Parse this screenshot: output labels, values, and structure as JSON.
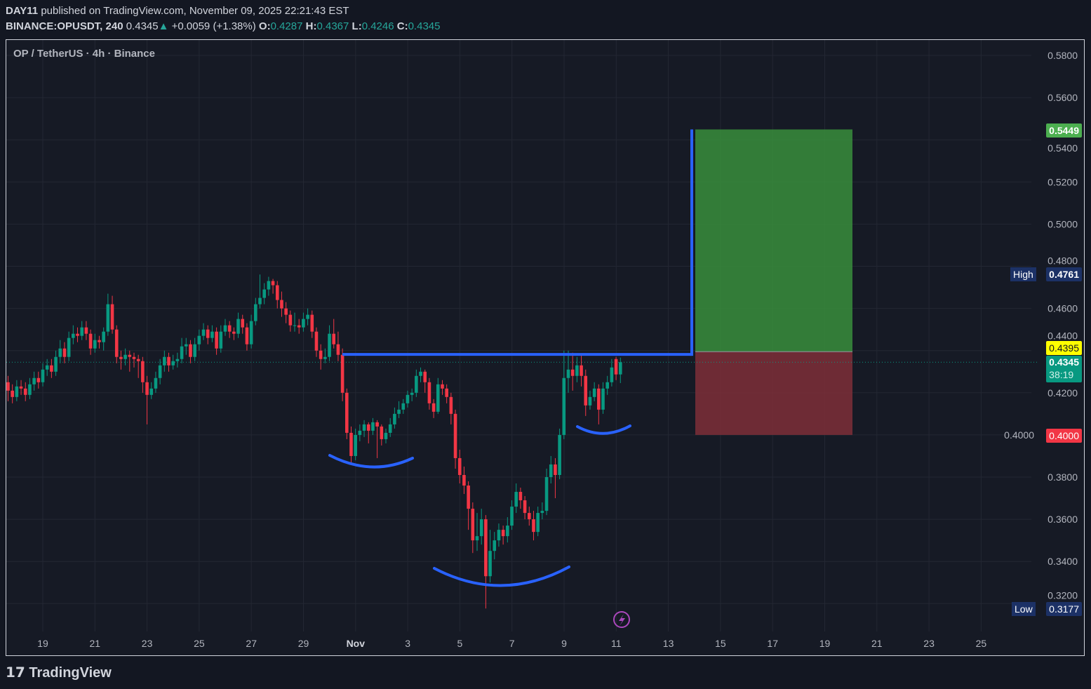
{
  "header": {
    "author": "DAY11",
    "published": "published on TradingView.com, November 09, 2025 22:21:43 EST",
    "symbol": "BINANCE:OPUSDT, 240",
    "last": "0.4345",
    "change": "+0.0059 (+1.38%)",
    "o_label": "O:",
    "o": "0.4287",
    "h_label": "H:",
    "h": "0.4367",
    "l_label": "L:",
    "l": "0.4246",
    "c_label": "C:",
    "c": "0.4345"
  },
  "legend": "OP / TetherUS · 4h · Binance",
  "labels": {
    "target": "0.5449",
    "high_tag": "High",
    "high": "0.4761",
    "entry": "0.4395",
    "current": "0.4345",
    "countdown": "38:19",
    "stop": "0.4000",
    "low_tag": "Low",
    "low": "0.3177"
  },
  "branding": "TradingView",
  "colors": {
    "up": "#089981",
    "down": "#f23645",
    "drawing": "#2962ff",
    "profit": "#388e3c",
    "loss": "#7e2f38",
    "entry": "#ffff00"
  },
  "chart_data": {
    "type": "candlestick",
    "title": "OP / TetherUS · 4h · Binance",
    "ylim": [
      0.31,
      0.586
    ],
    "y_ticks": [
      "0.5800",
      "0.5600",
      "0.5400",
      "0.5200",
      "0.5000",
      "0.4800",
      "0.4600",
      "0.4400",
      "0.4200",
      "0.4000",
      "0.3800",
      "0.3600",
      "0.3400",
      "0.3200"
    ],
    "x_ticks": [
      "19",
      "21",
      "23",
      "25",
      "27",
      "29",
      "Nov",
      "3",
      "5",
      "7",
      "9",
      "11",
      "13",
      "15",
      "17",
      "19",
      "21",
      "23",
      "25"
    ],
    "grid": true,
    "candles_ohlc": [
      [
        0.425,
        0.428,
        0.416,
        0.421
      ],
      [
        0.421,
        0.424,
        0.415,
        0.418
      ],
      [
        0.418,
        0.426,
        0.416,
        0.423
      ],
      [
        0.423,
        0.426,
        0.419,
        0.422
      ],
      [
        0.422,
        0.425,
        0.416,
        0.419
      ],
      [
        0.419,
        0.427,
        0.417,
        0.424
      ],
      [
        0.424,
        0.43,
        0.421,
        0.427
      ],
      [
        0.427,
        0.43,
        0.422,
        0.425
      ],
      [
        0.425,
        0.434,
        0.423,
        0.431
      ],
      [
        0.431,
        0.436,
        0.428,
        0.433
      ],
      [
        0.433,
        0.436,
        0.427,
        0.43
      ],
      [
        0.43,
        0.44,
        0.428,
        0.437
      ],
      [
        0.437,
        0.445,
        0.434,
        0.441
      ],
      [
        0.441,
        0.444,
        0.434,
        0.437
      ],
      [
        0.437,
        0.449,
        0.435,
        0.446
      ],
      [
        0.446,
        0.452,
        0.443,
        0.448
      ],
      [
        0.448,
        0.451,
        0.444,
        0.447
      ],
      [
        0.447,
        0.454,
        0.445,
        0.451
      ],
      [
        0.451,
        0.454,
        0.445,
        0.448
      ],
      [
        0.448,
        0.45,
        0.438,
        0.441
      ],
      [
        0.441,
        0.448,
        0.439,
        0.445
      ],
      [
        0.445,
        0.447,
        0.441,
        0.444
      ],
      [
        0.444,
        0.451,
        0.44,
        0.449
      ],
      [
        0.449,
        0.467,
        0.447,
        0.462
      ],
      [
        0.462,
        0.466,
        0.448,
        0.45
      ],
      [
        0.45,
        0.452,
        0.434,
        0.437
      ],
      [
        0.437,
        0.44,
        0.431,
        0.436
      ],
      [
        0.436,
        0.441,
        0.433,
        0.438
      ],
      [
        0.438,
        0.44,
        0.43,
        0.437
      ],
      [
        0.437,
        0.439,
        0.432,
        0.436
      ],
      [
        0.436,
        0.438,
        0.427,
        0.435
      ],
      [
        0.435,
        0.437,
        0.42,
        0.425
      ],
      [
        0.425,
        0.428,
        0.405,
        0.419
      ],
      [
        0.419,
        0.425,
        0.417,
        0.422
      ],
      [
        0.422,
        0.43,
        0.42,
        0.427
      ],
      [
        0.427,
        0.436,
        0.424,
        0.433
      ],
      [
        0.433,
        0.44,
        0.43,
        0.437
      ],
      [
        0.437,
        0.439,
        0.43,
        0.433
      ],
      [
        0.433,
        0.438,
        0.431,
        0.435
      ],
      [
        0.435,
        0.439,
        0.432,
        0.436
      ],
      [
        0.436,
        0.446,
        0.434,
        0.442
      ],
      [
        0.442,
        0.446,
        0.438,
        0.443
      ],
      [
        0.443,
        0.445,
        0.434,
        0.437
      ],
      [
        0.437,
        0.446,
        0.435,
        0.443
      ],
      [
        0.443,
        0.45,
        0.44,
        0.447
      ],
      [
        0.447,
        0.453,
        0.445,
        0.45
      ],
      [
        0.45,
        0.452,
        0.443,
        0.446
      ],
      [
        0.446,
        0.452,
        0.444,
        0.449
      ],
      [
        0.449,
        0.451,
        0.438,
        0.441
      ],
      [
        0.441,
        0.452,
        0.439,
        0.449
      ],
      [
        0.449,
        0.455,
        0.447,
        0.452
      ],
      [
        0.452,
        0.454,
        0.446,
        0.449
      ],
      [
        0.449,
        0.451,
        0.445,
        0.448
      ],
      [
        0.448,
        0.458,
        0.446,
        0.455
      ],
      [
        0.455,
        0.457,
        0.448,
        0.451
      ],
      [
        0.451,
        0.453,
        0.44,
        0.443
      ],
      [
        0.443,
        0.457,
        0.441,
        0.454
      ],
      [
        0.454,
        0.465,
        0.452,
        0.462
      ],
      [
        0.462,
        0.4761,
        0.46,
        0.465
      ],
      [
        0.465,
        0.472,
        0.462,
        0.469
      ],
      [
        0.469,
        0.475,
        0.466,
        0.473
      ],
      [
        0.473,
        0.474,
        0.467,
        0.471
      ],
      [
        0.471,
        0.473,
        0.46,
        0.464
      ],
      [
        0.464,
        0.468,
        0.456,
        0.46
      ],
      [
        0.46,
        0.463,
        0.453,
        0.457
      ],
      [
        0.457,
        0.459,
        0.449,
        0.452
      ],
      [
        0.452,
        0.458,
        0.449,
        0.452
      ],
      [
        0.452,
        0.455,
        0.448,
        0.451
      ],
      [
        0.451,
        0.458,
        0.449,
        0.455
      ],
      [
        0.455,
        0.46,
        0.452,
        0.457
      ],
      [
        0.457,
        0.459,
        0.446,
        0.449
      ],
      [
        0.449,
        0.451,
        0.437,
        0.44
      ],
      [
        0.44,
        0.443,
        0.431,
        0.436
      ],
      [
        0.436,
        0.441,
        0.434,
        0.437
      ],
      [
        0.437,
        0.452,
        0.435,
        0.448
      ],
      [
        0.448,
        0.455,
        0.441,
        0.443
      ],
      [
        0.443,
        0.449,
        0.435,
        0.438
      ],
      [
        0.438,
        0.441,
        0.416,
        0.42
      ],
      [
        0.42,
        0.422,
        0.398,
        0.401
      ],
      [
        0.401,
        0.404,
        0.387,
        0.39
      ],
      [
        0.39,
        0.403,
        0.388,
        0.4
      ],
      [
        0.4,
        0.405,
        0.397,
        0.402
      ],
      [
        0.402,
        0.407,
        0.399,
        0.405
      ],
      [
        0.405,
        0.406,
        0.396,
        0.402
      ],
      [
        0.402,
        0.408,
        0.4,
        0.406
      ],
      [
        0.406,
        0.407,
        0.389,
        0.404
      ],
      [
        0.404,
        0.405,
        0.395,
        0.398
      ],
      [
        0.398,
        0.403,
        0.396,
        0.401
      ],
      [
        0.401,
        0.408,
        0.399,
        0.405
      ],
      [
        0.405,
        0.413,
        0.403,
        0.41
      ],
      [
        0.41,
        0.416,
        0.408,
        0.412
      ],
      [
        0.412,
        0.417,
        0.41,
        0.415
      ],
      [
        0.415,
        0.421,
        0.413,
        0.419
      ],
      [
        0.419,
        0.422,
        0.416,
        0.42
      ],
      [
        0.42,
        0.431,
        0.418,
        0.428
      ],
      [
        0.428,
        0.432,
        0.425,
        0.43
      ],
      [
        0.43,
        0.431,
        0.42,
        0.425
      ],
      [
        0.425,
        0.427,
        0.412,
        0.415
      ],
      [
        0.415,
        0.417,
        0.408,
        0.411
      ],
      [
        0.411,
        0.427,
        0.41,
        0.424
      ],
      [
        0.424,
        0.426,
        0.419,
        0.422
      ],
      [
        0.422,
        0.424,
        0.415,
        0.418
      ],
      [
        0.418,
        0.42,
        0.405,
        0.41
      ],
      [
        0.41,
        0.412,
        0.384,
        0.389
      ],
      [
        0.389,
        0.393,
        0.377,
        0.381
      ],
      [
        0.381,
        0.385,
        0.372,
        0.376
      ],
      [
        0.376,
        0.378,
        0.355,
        0.365
      ],
      [
        0.365,
        0.368,
        0.344,
        0.35
      ],
      [
        0.35,
        0.363,
        0.345,
        0.352
      ],
      [
        0.352,
        0.365,
        0.348,
        0.36
      ],
      [
        0.36,
        0.362,
        0.3177,
        0.333
      ],
      [
        0.333,
        0.355,
        0.33,
        0.345
      ],
      [
        0.345,
        0.354,
        0.341,
        0.35
      ],
      [
        0.35,
        0.358,
        0.347,
        0.355
      ],
      [
        0.355,
        0.357,
        0.348,
        0.352
      ],
      [
        0.352,
        0.361,
        0.349,
        0.357
      ],
      [
        0.357,
        0.369,
        0.355,
        0.366
      ],
      [
        0.366,
        0.377,
        0.363,
        0.373
      ],
      [
        0.373,
        0.375,
        0.365,
        0.369
      ],
      [
        0.369,
        0.371,
        0.36,
        0.363
      ],
      [
        0.363,
        0.366,
        0.357,
        0.36
      ],
      [
        0.36,
        0.364,
        0.35,
        0.354
      ],
      [
        0.354,
        0.366,
        0.352,
        0.363
      ],
      [
        0.363,
        0.368,
        0.36,
        0.364
      ],
      [
        0.364,
        0.384,
        0.362,
        0.38
      ],
      [
        0.38,
        0.39,
        0.377,
        0.386
      ],
      [
        0.386,
        0.389,
        0.37,
        0.381
      ],
      [
        0.381,
        0.403,
        0.379,
        0.4
      ],
      [
        0.4,
        0.44,
        0.398,
        0.427
      ],
      [
        0.427,
        0.44,
        0.42,
        0.431
      ],
      [
        0.431,
        0.439,
        0.421,
        0.428
      ],
      [
        0.428,
        0.437,
        0.425,
        0.433
      ],
      [
        0.433,
        0.438,
        0.423,
        0.428
      ],
      [
        0.428,
        0.431,
        0.409,
        0.414
      ],
      [
        0.414,
        0.421,
        0.412,
        0.418
      ],
      [
        0.418,
        0.425,
        0.416,
        0.422
      ],
      [
        0.422,
        0.424,
        0.405,
        0.412
      ],
      [
        0.412,
        0.425,
        0.41,
        0.422
      ],
      [
        0.422,
        0.428,
        0.419,
        0.425
      ],
      [
        0.425,
        0.436,
        0.423,
        0.432
      ],
      [
        0.436,
        0.437,
        0.426,
        0.4287
      ],
      [
        0.4287,
        0.4367,
        0.4246,
        0.4345
      ]
    ],
    "last_price": 0.4345,
    "drawings": {
      "neckline_price": 0.4382,
      "long_position": {
        "target": 0.5449,
        "entry": 0.4395,
        "stop": 0.4
      }
    }
  }
}
